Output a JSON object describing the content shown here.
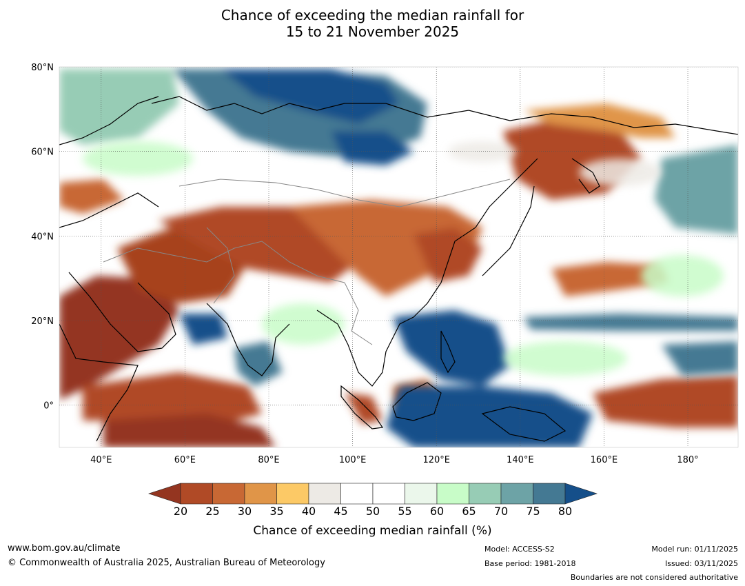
{
  "title_line1": "Chance of exceeding the median rainfall for",
  "title_line2": "15 to 21 November 2025",
  "map": {
    "lat_labels": [
      "80°N",
      "60°N",
      "40°N",
      "20°N",
      "0°"
    ],
    "lon_labels": [
      "40°E",
      "60°E",
      "80°E",
      "100°E",
      "120°E",
      "140°E",
      "160°E",
      "180°"
    ],
    "lon_range": [
      30,
      192
    ],
    "lat_range": [
      -10,
      80
    ]
  },
  "colorbar": {
    "label": "Chance of exceeding median rainfall (%)",
    "ticks": [
      "20",
      "25",
      "30",
      "35",
      "40",
      "45",
      "50",
      "55",
      "60",
      "65",
      "70",
      "75",
      "80"
    ],
    "colors": [
      "#943520",
      "#b04a26",
      "#c86834",
      "#e09548",
      "#fcc966",
      "#edeae5",
      "#ffffff",
      "#ffffff",
      "#ebf7eb",
      "#c8fcc8",
      "#97ccb5",
      "#6da3a6",
      "#447993",
      "#154f8a"
    ]
  },
  "footer": {
    "website": "www.bom.gov.au/climate",
    "copyright": "© Commonwealth of Australia 2025, Australian Bureau of Meteorology",
    "model": "Model: ACCESS-S2",
    "base_period": "Base period: 1981-2018",
    "model_run": "Model run: 01/11/2025",
    "issued": "Issued: 03/11/2025",
    "disclaimer": "Boundaries are not considered authoritative"
  }
}
